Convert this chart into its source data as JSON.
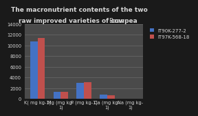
{
  "title_line1": "The macronutrient contents of the two",
  "title_line2": "raw improved varieties of cowpea ",
  "title_line2b": "Bean",
  "categories": [
    "K( mg kg-1)",
    "Mg (mg kg-\n1)",
    "P (mg kg-1)",
    "Ca (mg kg-\n1)",
    "Na (mg kg-\n1)"
  ],
  "series1_label": "IT90K-277-2",
  "series2_label": "IT97K-568-18",
  "series1_values": [
    10700,
    1350,
    3000,
    800,
    30
  ],
  "series2_values": [
    11300,
    1300,
    3100,
    600,
    20
  ],
  "series1_color": "#4472C4",
  "series2_color": "#C0504D",
  "bg_color": "#1a1a1a",
  "plot_bg_color": "#4a4a4a",
  "text_color": "#D8D8D8",
  "grid_color": "#6a6a6a",
  "ylim": [
    0,
    14000
  ],
  "yticks": [
    0,
    2000,
    4000,
    6000,
    8000,
    10000,
    12000,
    14000
  ],
  "title_fontsize": 6.5,
  "tick_fontsize": 4.8,
  "legend_fontsize": 5.0,
  "bar_width": 0.32
}
